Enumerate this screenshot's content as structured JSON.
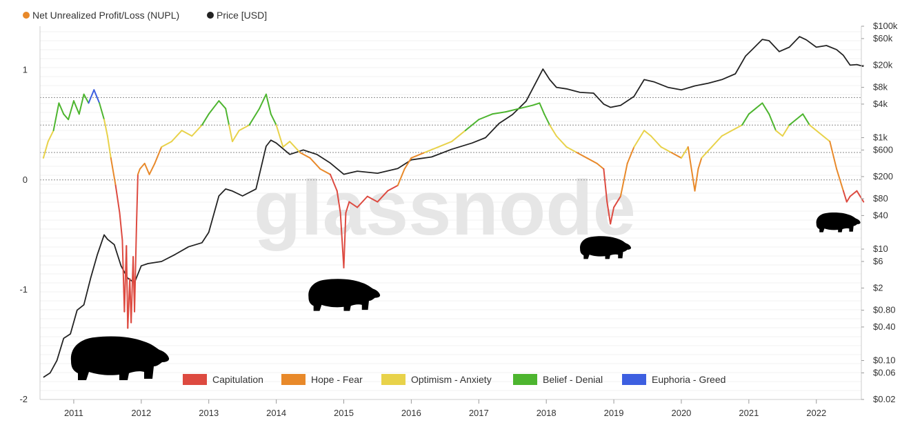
{
  "chart_data": {
    "type": "line",
    "legend": [
      {
        "name": "Net Unrealized Profit/Loss (NUPL)",
        "color": "#e8892a"
      },
      {
        "name": "Price [USD]",
        "color": "#222222"
      }
    ],
    "watermark": "glassnode",
    "x_ticks": [
      "2011",
      "2012",
      "2013",
      "2014",
      "2015",
      "2016",
      "2017",
      "2018",
      "2019",
      "2020",
      "2021",
      "2022"
    ],
    "x_range": [
      "2010-07",
      "2022-09"
    ],
    "y_left": {
      "ticks": [
        "1",
        "0",
        "-1",
        "-2"
      ],
      "tick_values": [
        1,
        0,
        -1,
        -2
      ],
      "range": [
        -2,
        1.4
      ]
    },
    "y_right": {
      "scale": "log",
      "ticks": [
        "$100k",
        "$60k",
        "$20k",
        "$8k",
        "$4k",
        "$1k",
        "$600",
        "$200",
        "$80",
        "$40",
        "$10",
        "$6",
        "$2",
        "$0.80",
        "$0.40",
        "$0.10",
        "$0.06",
        "$0.02"
      ],
      "tick_values": [
        100000,
        60000,
        20000,
        8000,
        4000,
        1000,
        600,
        200,
        80,
        40,
        10,
        6,
        2,
        0.8,
        0.4,
        0.1,
        0.06,
        0.02
      ],
      "range": [
        0.02,
        100000
      ]
    },
    "zone_thresholds": [
      0,
      0.25,
      0.5,
      0.75
    ],
    "zones": [
      {
        "name": "Capitulation",
        "color": "#dd4a40",
        "min": -5,
        "max": 0
      },
      {
        "name": "Hope - Fear",
        "color": "#e8892a",
        "min": 0,
        "max": 0.25
      },
      {
        "name": "Optimism - Anxiety",
        "color": "#e8d24a",
        "min": 0.25,
        "max": 0.5
      },
      {
        "name": "Belief - Denial",
        "color": "#4db52f",
        "min": 0.5,
        "max": 0.75
      },
      {
        "name": "Euphoria - Greed",
        "color": "#3d5fe0",
        "min": 0.75,
        "max": 5
      }
    ],
    "series": [
      {
        "name": "Net Unrealized Profit/Loss (NUPL)",
        "x": [
          2010.55,
          2010.62,
          2010.7,
          2010.78,
          2010.85,
          2010.92,
          2011.0,
          2011.08,
          2011.15,
          2011.22,
          2011.3,
          2011.38,
          2011.45,
          2011.5,
          2011.55,
          2011.62,
          2011.68,
          2011.72,
          2011.75,
          2011.78,
          2011.8,
          2011.83,
          2011.85,
          2011.88,
          2011.9,
          2011.93,
          2011.95,
          2011.98,
          2012.05,
          2012.12,
          2012.2,
          2012.3,
          2012.45,
          2012.6,
          2012.75,
          2012.9,
          2013.0,
          2013.15,
          2013.25,
          2013.3,
          2013.35,
          2013.45,
          2013.6,
          2013.75,
          2013.85,
          2013.92,
          2014.0,
          2014.1,
          2014.2,
          2014.35,
          2014.5,
          2014.65,
          2014.8,
          2014.9,
          2014.95,
          2015.0,
          2015.03,
          2015.08,
          2015.2,
          2015.35,
          2015.5,
          2015.65,
          2015.8,
          2015.9,
          2016.0,
          2016.2,
          2016.4,
          2016.6,
          2016.8,
          2017.0,
          2017.2,
          2017.4,
          2017.6,
          2017.8,
          2017.9,
          2017.97,
          2018.05,
          2018.15,
          2018.3,
          2018.45,
          2018.6,
          2018.75,
          2018.85,
          2018.9,
          2018.95,
          2019.0,
          2019.1,
          2019.2,
          2019.3,
          2019.45,
          2019.55,
          2019.7,
          2019.85,
          2020.0,
          2020.1,
          2020.2,
          2020.25,
          2020.3,
          2020.45,
          2020.6,
          2020.75,
          2020.9,
          2021.0,
          2021.1,
          2021.2,
          2021.3,
          2021.4,
          2021.5,
          2021.6,
          2021.7,
          2021.8,
          2021.9,
          2022.0,
          2022.1,
          2022.2,
          2022.3,
          2022.4,
          2022.45,
          2022.5,
          2022.6,
          2022.7
        ],
        "values": [
          0.2,
          0.35,
          0.45,
          0.7,
          0.6,
          0.55,
          0.72,
          0.6,
          0.78,
          0.7,
          0.82,
          0.7,
          0.55,
          0.4,
          0.2,
          -0.05,
          -0.3,
          -0.55,
          -1.2,
          -0.6,
          -1.35,
          -0.9,
          -1.3,
          -0.7,
          -1.2,
          -0.4,
          0.05,
          0.1,
          0.15,
          0.05,
          0.15,
          0.3,
          0.35,
          0.45,
          0.4,
          0.5,
          0.6,
          0.72,
          0.65,
          0.5,
          0.35,
          0.45,
          0.5,
          0.65,
          0.78,
          0.6,
          0.5,
          0.3,
          0.35,
          0.25,
          0.2,
          0.1,
          0.05,
          -0.1,
          -0.3,
          -0.8,
          -0.3,
          -0.2,
          -0.25,
          -0.15,
          -0.2,
          -0.1,
          -0.05,
          0.1,
          0.2,
          0.25,
          0.3,
          0.35,
          0.45,
          0.55,
          0.6,
          0.62,
          0.65,
          0.68,
          0.7,
          0.6,
          0.5,
          0.4,
          0.3,
          0.25,
          0.2,
          0.15,
          0.1,
          -0.2,
          -0.4,
          -0.25,
          -0.15,
          0.15,
          0.3,
          0.45,
          0.4,
          0.3,
          0.25,
          0.2,
          0.3,
          -0.1,
          0.1,
          0.2,
          0.3,
          0.4,
          0.45,
          0.5,
          0.6,
          0.65,
          0.7,
          0.6,
          0.45,
          0.4,
          0.5,
          0.55,
          0.6,
          0.5,
          0.45,
          0.4,
          0.35,
          0.1,
          -0.1,
          -0.2,
          -0.15,
          -0.1,
          -0.2
        ]
      },
      {
        "name": "Price [USD]",
        "x": [
          2010.55,
          2010.65,
          2010.75,
          2010.85,
          2010.95,
          2011.05,
          2011.15,
          2011.25,
          2011.35,
          2011.45,
          2011.5,
          2011.6,
          2011.7,
          2011.8,
          2011.9,
          2012.0,
          2012.1,
          2012.3,
          2012.5,
          2012.7,
          2012.9,
          2013.0,
          2013.15,
          2013.25,
          2013.35,
          2013.5,
          2013.7,
          2013.85,
          2013.92,
          2014.0,
          2014.2,
          2014.4,
          2014.6,
          2014.8,
          2015.0,
          2015.2,
          2015.5,
          2015.8,
          2016.0,
          2016.3,
          2016.6,
          2016.9,
          2017.1,
          2017.3,
          2017.5,
          2017.7,
          2017.85,
          2017.95,
          2018.05,
          2018.15,
          2018.3,
          2018.5,
          2018.7,
          2018.85,
          2018.95,
          2019.1,
          2019.3,
          2019.45,
          2019.6,
          2019.8,
          2020.0,
          2020.2,
          2020.4,
          2020.6,
          2020.8,
          2020.95,
          2021.05,
          2021.2,
          2021.3,
          2021.45,
          2021.6,
          2021.75,
          2021.85,
          2022.0,
          2022.15,
          2022.3,
          2022.4,
          2022.5,
          2022.6,
          2022.7
        ],
        "values": [
          0.05,
          0.06,
          0.1,
          0.25,
          0.3,
          0.8,
          1.0,
          3.0,
          8.0,
          18.0,
          15.0,
          12.0,
          5.0,
          3.0,
          2.5,
          5.0,
          5.5,
          6.0,
          8.0,
          11.0,
          13.0,
          20.0,
          90.0,
          120.0,
          110.0,
          90.0,
          120.0,
          700.0,
          900.0,
          800.0,
          500.0,
          600.0,
          500.0,
          350.0,
          220.0,
          250.0,
          230.0,
          280.0,
          400.0,
          450.0,
          620.0,
          800.0,
          1000.0,
          1800.0,
          2600.0,
          4500.0,
          10000.0,
          17000.0,
          11000.0,
          8000.0,
          7500.0,
          6500.0,
          6300.0,
          4000.0,
          3500.0,
          3800.0,
          5500.0,
          11000.0,
          10000.0,
          8000.0,
          7200.0,
          8500.0,
          9500.0,
          11000.0,
          14000.0,
          29000.0,
          38000.0,
          58000.0,
          55000.0,
          35000.0,
          42000.0,
          65000.0,
          57000.0,
          42000.0,
          45000.0,
          38000.0,
          30000.0,
          20000.0,
          20500.0,
          19000.0
        ]
      }
    ]
  }
}
